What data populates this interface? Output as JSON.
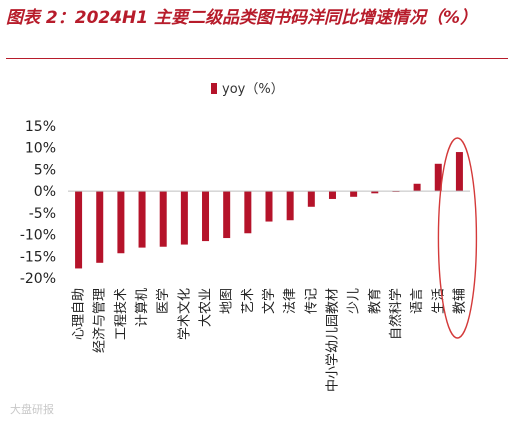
{
  "figure": {
    "title": "图表 2：2024H1 主要二级品类图书码洋同比增速情况（%）"
  },
  "watermark": "大盘研报",
  "colors": {
    "bar": "#b5132a",
    "title": "#b71c2b",
    "highlight": "#d43a3a"
  },
  "chart_data": {
    "type": "bar",
    "categories": [
      "心理自助",
      "经济与管理",
      "工程技术",
      "计算机",
      "医学",
      "学术文化",
      "大农业",
      "地图",
      "艺术",
      "文学",
      "法律",
      "传记",
      "中小学幼儿园教材",
      "少儿",
      "教育",
      "自然科学",
      "语言",
      "生活",
      "教辅"
    ],
    "series": [
      {
        "name": "yoy（%）",
        "values": [
          -17.8,
          -16.5,
          -14.3,
          -13.0,
          -12.8,
          -12.3,
          -11.5,
          -10.8,
          -9.7,
          -7.0,
          -6.7,
          -3.6,
          -1.8,
          -1.3,
          -0.5,
          0.0,
          1.7,
          6.3,
          9.0
        ]
      }
    ],
    "ylim": [
      -20,
      15
    ],
    "yticks": [
      "15%",
      "10%",
      "5%",
      "0%",
      "-5%",
      "-10%",
      "-15%",
      "-20%"
    ],
    "legend_position": "top-center",
    "grid": false,
    "highlighted_category": "教辅"
  }
}
